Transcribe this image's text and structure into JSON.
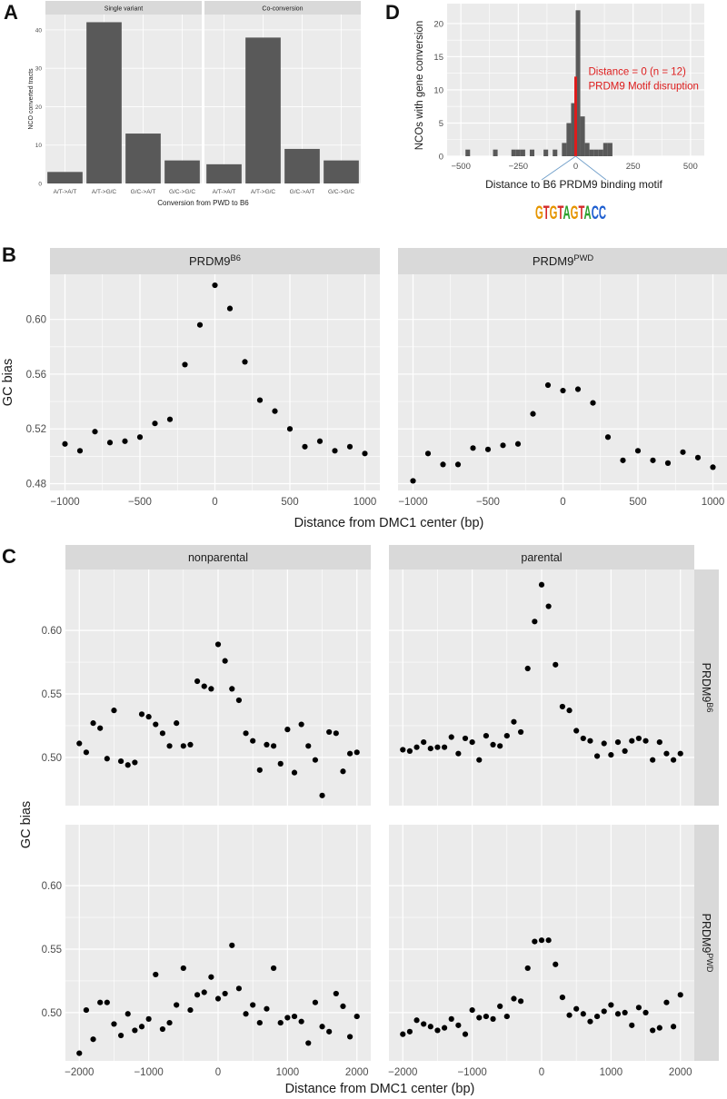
{
  "colors": {
    "panel_bg": "#ebebeb",
    "strip_bg": "#d9d9d9",
    "grid": "#ffffff",
    "bar": "#595959",
    "point": "#000000",
    "highlight": "#dd1c1c"
  },
  "panel_labels": {
    "a": "A",
    "b": "B",
    "c": "C",
    "d": "D"
  },
  "chart_data": [
    {
      "id": "A",
      "type": "bar",
      "title": "",
      "xlabel": "Conversion from PWD to B6",
      "ylabel": "NCO converted tracts",
      "ylim": [
        0,
        44
      ],
      "yticks": [
        0,
        10,
        20,
        30,
        40
      ],
      "categories": [
        "A/T->A/T",
        "A/T->G/C",
        "G/C->A/T",
        "G/C->G/C"
      ],
      "facets": [
        {
          "name": "Single variant",
          "values": [
            3,
            42,
            13,
            6
          ]
        },
        {
          "name": "Co-conversion",
          "values": [
            5,
            38,
            9,
            6
          ]
        }
      ]
    },
    {
      "id": "D",
      "type": "bar",
      "title": "",
      "xlabel": "Distance to B6 PRDM9 binding motif",
      "ylabel": "NCOs with gene conversion",
      "xlim": [
        -560,
        560
      ],
      "ylim": [
        0,
        23
      ],
      "xticks": [
        -500,
        -250,
        0,
        250,
        500
      ],
      "yticks": [
        0,
        5,
        10,
        15,
        20
      ],
      "bin_width": 20,
      "bin_centers": [
        -470,
        -350,
        -270,
        -250,
        -230,
        -190,
        -130,
        -90,
        -50,
        -30,
        -10,
        10,
        30,
        50,
        70,
        90,
        110,
        130,
        150
      ],
      "counts": [
        1,
        1,
        1,
        1,
        1,
        1,
        1,
        1,
        2,
        5,
        8,
        22,
        6,
        2,
        1,
        1,
        1,
        2,
        2
      ],
      "highlight_count": 12,
      "annotations": [
        "Distance = 0 (n = 12)",
        "PRDM9 Motif disruption"
      ],
      "motif_logo": "GTGTAGTACC"
    },
    {
      "id": "B",
      "type": "scatter",
      "xlabel": "Distance from DMC1 center (bp)",
      "ylabel": "GC bias",
      "xlim": [
        -1100,
        1100
      ],
      "ylim": [
        0.475,
        0.633
      ],
      "xticks": [
        -1000,
        -500,
        0,
        500,
        1000
      ],
      "yticks": [
        0.48,
        0.52,
        0.56,
        0.6
      ],
      "facets": [
        {
          "name": "PRDM9",
          "sup": "B6",
          "x": [
            -1000,
            -900,
            -800,
            -700,
            -600,
            -500,
            -400,
            -300,
            -200,
            -100,
            0,
            100,
            200,
            300,
            400,
            500,
            600,
            700,
            800,
            900,
            1000
          ],
          "y": [
            0.509,
            0.504,
            0.518,
            0.51,
            0.511,
            0.514,
            0.524,
            0.527,
            0.567,
            0.596,
            0.625,
            0.608,
            0.569,
            0.541,
            0.533,
            0.52,
            0.507,
            0.511,
            0.504,
            0.507,
            0.502
          ]
        },
        {
          "name": "PRDM9",
          "sup": "PWD",
          "x": [
            -1000,
            -900,
            -800,
            -700,
            -600,
            -500,
            -400,
            -300,
            -200,
            -100,
            0,
            100,
            200,
            300,
            400,
            500,
            600,
            700,
            800,
            900,
            1000
          ],
          "y": [
            0.482,
            0.502,
            0.494,
            0.494,
            0.506,
            0.505,
            0.508,
            0.509,
            0.531,
            0.552,
            0.548,
            0.549,
            0.539,
            0.514,
            0.497,
            0.504,
            0.497,
            0.495,
            0.503,
            0.499,
            0.492
          ]
        }
      ]
    },
    {
      "id": "C",
      "type": "scatter",
      "xlabel": "Distance from DMC1 center (bp)",
      "ylabel": "GC bias",
      "xlim": [
        -2200,
        2200
      ],
      "ylim": [
        0.462,
        0.648
      ],
      "xticks": [
        -2000,
        -1000,
        0,
        1000,
        2000
      ],
      "yticks": [
        0.5,
        0.55,
        0.6
      ],
      "columns": [
        "nonparental",
        "parental"
      ],
      "rows": [
        {
          "name": "PRDM9",
          "sup": "B6"
        },
        {
          "name": "PRDM9",
          "sup": "PWD"
        }
      ],
      "x": [
        -2000,
        -1900,
        -1800,
        -1700,
        -1600,
        -1500,
        -1400,
        -1300,
        -1200,
        -1100,
        -1000,
        -900,
        -800,
        -700,
        -600,
        -500,
        -400,
        -300,
        -200,
        -100,
        0,
        100,
        200,
        300,
        400,
        500,
        600,
        700,
        800,
        900,
        1000,
        1100,
        1200,
        1300,
        1400,
        1500,
        1600,
        1700,
        1800,
        1900,
        2000
      ],
      "panels": [
        {
          "column": "nonparental",
          "row": "B6",
          "y": [
            0.511,
            0.504,
            0.527,
            0.523,
            0.499,
            0.537,
            0.497,
            0.494,
            0.496,
            0.534,
            0.532,
            0.526,
            0.519,
            0.509,
            0.527,
            0.509,
            0.51,
            0.56,
            0.556,
            0.554,
            0.589,
            0.576,
            0.554,
            0.545,
            0.519,
            0.513,
            0.49,
            0.51,
            0.509,
            0.495,
            0.522,
            0.488,
            0.526,
            0.509,
            0.498,
            0.47,
            0.52,
            0.519,
            0.489,
            0.503,
            0.504
          ]
        },
        {
          "column": "parental",
          "row": "B6",
          "y": [
            0.506,
            0.505,
            0.508,
            0.512,
            0.507,
            0.508,
            0.508,
            0.516,
            0.503,
            0.515,
            0.512,
            0.498,
            0.517,
            0.51,
            0.509,
            0.517,
            0.528,
            0.52,
            0.57,
            0.607,
            0.636,
            0.619,
            0.573,
            0.54,
            0.537,
            0.521,
            0.515,
            0.513,
            0.501,
            0.511,
            0.502,
            0.512,
            0.505,
            0.513,
            0.515,
            0.513,
            0.498,
            0.512,
            0.503,
            0.498,
            0.503
          ]
        },
        {
          "column": "nonparental",
          "row": "PWD",
          "y": [
            0.468,
            0.502,
            0.479,
            0.508,
            0.508,
            0.491,
            0.482,
            0.499,
            0.486,
            0.489,
            0.495,
            0.53,
            0.487,
            0.492,
            0.506,
            0.535,
            0.502,
            0.514,
            0.516,
            0.528,
            0.511,
            0.515,
            0.553,
            0.519,
            0.499,
            0.506,
            0.492,
            0.503,
            0.535,
            0.492,
            0.496,
            0.497,
            0.493,
            0.476,
            0.508,
            0.489,
            0.485,
            0.515,
            0.505,
            0.481,
            0.497
          ]
        },
        {
          "column": "parental",
          "row": "PWD",
          "y": [
            0.483,
            0.485,
            0.494,
            0.491,
            0.489,
            0.486,
            0.488,
            0.495,
            0.49,
            0.483,
            0.502,
            0.496,
            0.497,
            0.495,
            0.505,
            0.497,
            0.511,
            0.509,
            0.535,
            0.556,
            0.557,
            0.557,
            0.538,
            0.512,
            0.498,
            0.503,
            0.499,
            0.493,
            0.497,
            0.501,
            0.506,
            0.499,
            0.5,
            0.49,
            0.504,
            0.5,
            0.486,
            0.488,
            0.508,
            0.489,
            0.514
          ]
        }
      ]
    }
  ]
}
